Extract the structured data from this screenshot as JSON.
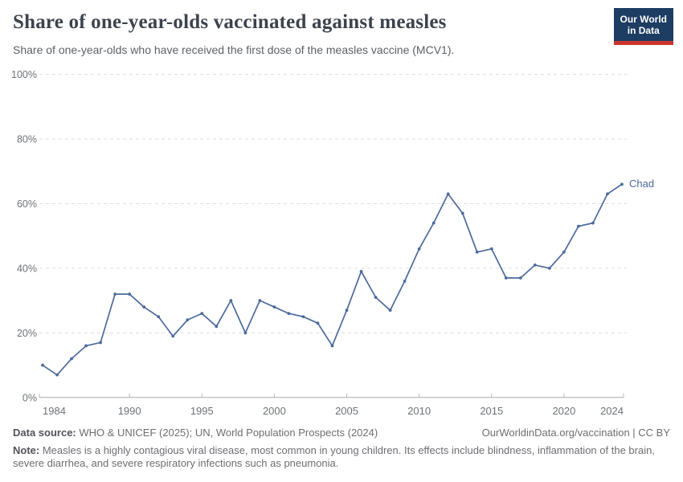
{
  "header": {
    "title": "Share of one-year-olds vaccinated against measles",
    "subtitle": "Share of one-year-olds who have received the first dose of the measles vaccine (MCV1).",
    "logo": {
      "line1": "Our World",
      "line2": "in Data"
    }
  },
  "chart_data": {
    "type": "line",
    "title": "Share of one-year-olds vaccinated against measles",
    "xlabel": "",
    "ylabel": "",
    "x": [
      1984,
      1985,
      1986,
      1987,
      1988,
      1989,
      1990,
      1991,
      1992,
      1993,
      1994,
      1995,
      1996,
      1997,
      1998,
      1999,
      2000,
      2001,
      2002,
      2003,
      2004,
      2005,
      2006,
      2007,
      2008,
      2009,
      2010,
      2011,
      2012,
      2013,
      2014,
      2015,
      2016,
      2017,
      2018,
      2019,
      2020,
      2021,
      2022,
      2023,
      2024
    ],
    "series": [
      {
        "name": "Chad",
        "color": "#4c6a9c",
        "values": [
          10,
          7,
          12,
          16,
          17,
          32,
          32,
          28,
          25,
          19,
          24,
          26,
          22,
          30,
          20,
          30,
          28,
          26,
          25,
          23,
          16,
          27,
          39,
          31,
          27,
          36,
          46,
          54,
          63,
          57,
          45,
          46,
          37,
          37,
          41,
          40,
          45,
          53,
          54,
          63,
          66
        ]
      }
    ],
    "xlim": [
      1984,
      2024
    ],
    "ylim": [
      0,
      100
    ],
    "x_ticks": [
      1984,
      1990,
      1995,
      2000,
      2005,
      2010,
      2015,
      2020,
      2024
    ],
    "y_ticks": [
      0,
      20,
      40,
      60,
      80,
      100
    ],
    "y_tick_suffix": "%",
    "grid": "horizontal dashed",
    "legend_position": "line-end label"
  },
  "footer": {
    "source_label": "Data source:",
    "source_text": " WHO & UNICEF (2025); UN, World Population Prospects (2024)",
    "link_text": "OurWorldinData.org/vaccination | CC BY",
    "note_label": "Note:",
    "note_text": " Measles is a highly contagious viral disease, most common in young children. Its effects include blindness, inflammation of the brain, severe diarrhea, and severe respiratory infections such as pneumonia."
  },
  "colors": {
    "line": "#4c6a9c",
    "logo_bg": "#1d3d63",
    "logo_stripe": "#c9362e",
    "gridline": "#dddddd",
    "axis": "#a9a9a9",
    "tick_text": "#6e7276"
  }
}
